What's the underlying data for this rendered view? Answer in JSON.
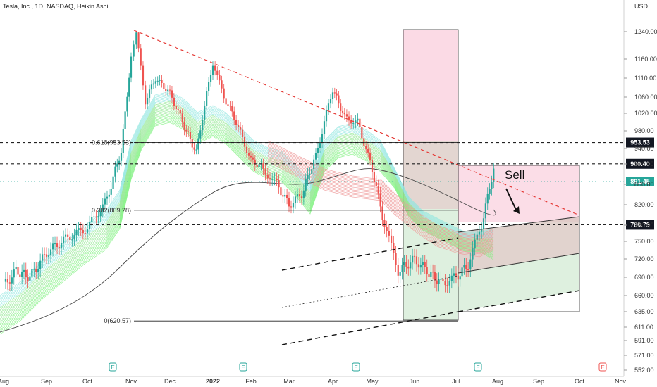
{
  "header": {
    "title": "Tesla, Inc., 1D, NASDAQ, Heikin Ashi",
    "currency": "USD"
  },
  "chart_data": {
    "type": "line",
    "title": "Tesla, Inc., 1D, NASDAQ, Heikin Ashi",
    "y_ticks": [
      552.0,
      571.0,
      591.0,
      611.0,
      635.0,
      660.0,
      690.0,
      720.0,
      750.0,
      780.0,
      820.0,
      860.0,
      900.0,
      940.0,
      980.0,
      1020.0,
      1060.0,
      1110.0,
      1160.0,
      1240.0
    ],
    "y_tick_labels": [
      "552.00",
      "571.00",
      "591.00",
      "611.00",
      "635.00",
      "660.00",
      "690.00",
      "720.00",
      "750.00",
      "780.00",
      "820.00",
      "860.00",
      "900.00",
      "940.00",
      "980.00",
      "1020.00",
      "1060.00",
      "1110.00",
      "1160.00",
      "1240.00"
    ],
    "x_tick_labels": [
      "Aug",
      "Sep",
      "Oct",
      "Nov",
      "Dec",
      "2022",
      "Feb",
      "Mar",
      "Apr",
      "May",
      "Jun",
      "Jul",
      "Aug",
      "Sep",
      "Oct",
      "Nov"
    ],
    "x_ticks_date": [
      "2021-08-01",
      "2021-09-01",
      "2021-10-01",
      "2021-11-01",
      "2021-12-01",
      "2022-01-01",
      "2022-02-01",
      "2022-03-01",
      "2022-04-01",
      "2022-05-01",
      "2022-06-01",
      "2022-07-01",
      "2022-08-01",
      "2022-09-01",
      "2022-10-01",
      "2022-11-01"
    ],
    "series": [
      {
        "type": "candles",
        "points": [
          [
            "2021-08-01",
            676
          ],
          [
            "2021-08-10",
            700
          ],
          [
            "2021-08-20",
            690
          ],
          [
            "2021-09-01",
            730
          ],
          [
            "2021-09-15",
            755
          ],
          [
            "2021-10-01",
            775
          ],
          [
            "2021-10-15",
            830
          ],
          [
            "2021-10-25",
            930
          ],
          [
            "2021-11-01",
            1160
          ],
          [
            "2021-11-05",
            1230
          ],
          [
            "2021-11-12",
            1050
          ],
          [
            "2021-11-20",
            1110
          ],
          [
            "2021-12-01",
            1070
          ],
          [
            "2021-12-10",
            1000
          ],
          [
            "2021-12-20",
            930
          ],
          [
            "2022-01-01",
            1150
          ],
          [
            "2022-01-10",
            1060
          ],
          [
            "2022-01-20",
            1000
          ],
          [
            "2022-02-01",
            910
          ],
          [
            "2022-02-10",
            890
          ],
          [
            "2022-02-20",
            860
          ],
          [
            "2022-03-01",
            820
          ],
          [
            "2022-03-10",
            840
          ],
          [
            "2022-03-20",
            920
          ],
          [
            "2022-04-01",
            1080
          ],
          [
            "2022-04-10",
            1010
          ],
          [
            "2022-04-20",
            1000
          ],
          [
            "2022-05-01",
            890
          ],
          [
            "2022-05-10",
            780
          ],
          [
            "2022-05-20",
            700
          ],
          [
            "2022-06-01",
            720
          ],
          [
            "2022-06-10",
            700
          ],
          [
            "2022-06-20",
            680
          ],
          [
            "2022-07-01",
            690
          ],
          [
            "2022-07-10",
            710
          ],
          [
            "2022-07-20",
            780
          ],
          [
            "2022-07-29",
            891
          ]
        ]
      }
    ],
    "horizontal_levels": [
      {
        "label": "953.53",
        "value": 953.53,
        "style": "dashed"
      },
      {
        "label": "900.40",
        "value": 900.4,
        "style": "dashed"
      },
      {
        "label": "780.79",
        "value": 780.79,
        "style": "dashed"
      }
    ],
    "last_price_label": "891.45",
    "fib_labels": [
      {
        "label": "0.618(953.53)",
        "value": 953.53
      },
      {
        "label": "0.382(809.28)",
        "value": 809.28
      },
      {
        "label": "0(620.57)",
        "value": 620.57
      }
    ],
    "annotation": "Sell",
    "earnings_marker": "E",
    "colors": {
      "up": "#26a69a",
      "down": "#ef5350",
      "resistance": "#e53935",
      "level_badge": "#131722",
      "last_price_badge": "#26a69a",
      "fill_red": "#f8bbd0",
      "fill_green": "#c8e6c9",
      "earnings_badge": "#26a69a",
      "earnings_badge_future": "#ef5350"
    },
    "legend": "none",
    "grid": false
  }
}
